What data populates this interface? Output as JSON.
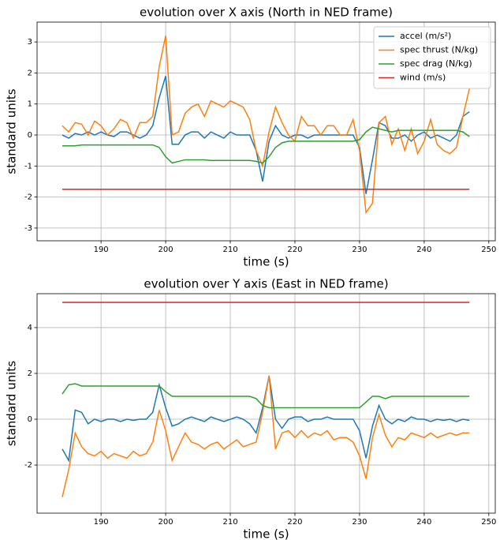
{
  "chart_data": [
    {
      "type": "line",
      "title": "evolution over X axis (North in NED frame)",
      "xlabel": "time (s)",
      "ylabel": "standard units",
      "xlim": [
        180.1,
        251
      ],
      "ylim": [
        -3.41,
        3.64
      ],
      "xticks": [
        190,
        200,
        210,
        220,
        230,
        240,
        250
      ],
      "yticks": [
        -3,
        -2,
        -1,
        0,
        1,
        2,
        3
      ],
      "grid": true,
      "legend": "upper right",
      "x": [
        184,
        185,
        186,
        187,
        188,
        189,
        190,
        191,
        192,
        193,
        194,
        195,
        196,
        197,
        198,
        199,
        200,
        201,
        202,
        203,
        204,
        205,
        206,
        207,
        208,
        209,
        210,
        211,
        212,
        213,
        214,
        215,
        216,
        217,
        218,
        219,
        220,
        221,
        222,
        223,
        224,
        225,
        226,
        227,
        228,
        229,
        230,
        231,
        232,
        233,
        234,
        235,
        236,
        237,
        238,
        239,
        240,
        241,
        242,
        243,
        244,
        245,
        246,
        247
      ],
      "series": [
        {
          "name": "accel (m/s²)",
          "color": "#1f77b4",
          "values": [
            0.0,
            -0.1,
            0.05,
            0.0,
            0.1,
            0.0,
            0.1,
            0.0,
            -0.05,
            0.1,
            0.1,
            0.0,
            -0.1,
            0.0,
            0.3,
            1.2,
            1.9,
            -0.3,
            -0.3,
            0.0,
            0.1,
            0.1,
            -0.1,
            0.1,
            0.0,
            -0.1,
            0.1,
            0.0,
            0.0,
            0.0,
            -0.5,
            -1.5,
            -0.2,
            0.3,
            0.0,
            -0.1,
            0.0,
            0.0,
            -0.1,
            0.0,
            0.0,
            0.0,
            0.0,
            0.0,
            0.0,
            0.0,
            -0.4,
            -1.9,
            -0.8,
            0.4,
            0.3,
            -0.1,
            -0.1,
            0.0,
            -0.2,
            0.0,
            0.1,
            -0.1,
            0.0,
            -0.1,
            -0.2,
            0.0,
            0.6,
            0.75
          ]
        },
        {
          "name": "spec thrust (N/kg)",
          "color": "#ff7f0e",
          "values": [
            0.3,
            0.1,
            0.4,
            0.35,
            0.0,
            0.45,
            0.3,
            0.0,
            0.2,
            0.5,
            0.4,
            -0.1,
            0.4,
            0.4,
            0.6,
            2.2,
            3.2,
            0.0,
            0.1,
            0.7,
            0.9,
            1.0,
            0.6,
            1.1,
            1.0,
            0.9,
            1.1,
            1.0,
            0.9,
            0.5,
            -0.5,
            -1.0,
            0.1,
            0.9,
            0.4,
            0.0,
            -0.2,
            0.6,
            0.3,
            0.3,
            0.0,
            0.3,
            0.3,
            0.0,
            0.0,
            0.5,
            -0.5,
            -2.5,
            -2.2,
            0.4,
            0.6,
            -0.3,
            0.2,
            -0.5,
            0.2,
            -0.6,
            -0.2,
            0.5,
            -0.3,
            -0.5,
            -0.6,
            -0.4,
            0.6,
            1.5
          ]
        },
        {
          "name": "spec drag (N/kg)",
          "color": "#2ca02c",
          "values": [
            -0.35,
            -0.35,
            -0.35,
            -0.32,
            -0.32,
            -0.32,
            -0.32,
            -0.32,
            -0.32,
            -0.32,
            -0.32,
            -0.32,
            -0.32,
            -0.32,
            -0.32,
            -0.4,
            -0.7,
            -0.9,
            -0.85,
            -0.8,
            -0.8,
            -0.8,
            -0.8,
            -0.82,
            -0.82,
            -0.82,
            -0.82,
            -0.82,
            -0.82,
            -0.82,
            -0.85,
            -0.9,
            -0.7,
            -0.4,
            -0.25,
            -0.2,
            -0.2,
            -0.2,
            -0.2,
            -0.2,
            -0.2,
            -0.2,
            -0.2,
            -0.2,
            -0.2,
            -0.2,
            -0.15,
            0.1,
            0.25,
            0.2,
            0.15,
            0.1,
            0.15,
            0.15,
            0.15,
            0.15,
            0.15,
            0.15,
            0.15,
            0.15,
            0.15,
            0.15,
            0.1,
            -0.05
          ]
        },
        {
          "name": "wind (m/s)",
          "color": "#d62728",
          "values": [
            -1.75,
            -1.75,
            -1.75,
            -1.75,
            -1.75,
            -1.75,
            -1.75,
            -1.75,
            -1.75,
            -1.75,
            -1.75,
            -1.75,
            -1.75,
            -1.75,
            -1.75,
            -1.75,
            -1.75,
            -1.75,
            -1.75,
            -1.75,
            -1.75,
            -1.75,
            -1.75,
            -1.75,
            -1.75,
            -1.75,
            -1.75,
            -1.75,
            -1.75,
            -1.75,
            -1.75,
            -1.75,
            -1.75,
            -1.75,
            -1.75,
            -1.75,
            -1.75,
            -1.75,
            -1.75,
            -1.75,
            -1.75,
            -1.75,
            -1.75,
            -1.75,
            -1.75,
            -1.75,
            -1.75,
            -1.75,
            -1.75,
            -1.75,
            -1.75,
            -1.75,
            -1.75,
            -1.75,
            -1.75,
            -1.75,
            -1.75,
            -1.75,
            -1.75,
            -1.75,
            -1.75,
            -1.75,
            -1.75,
            -1.75
          ]
        }
      ]
    },
    {
      "type": "line",
      "title": "evolution over Y axis (East in NED frame)",
      "xlabel": "time (s)",
      "ylabel": "standard units",
      "xlim": [
        180.1,
        251
      ],
      "ylim": [
        -4.1,
        5.48
      ],
      "xticks": [
        190,
        200,
        210,
        220,
        230,
        240,
        250
      ],
      "yticks": [
        -2,
        0,
        2,
        4
      ],
      "grid": true,
      "x": [
        184,
        185,
        186,
        187,
        188,
        189,
        190,
        191,
        192,
        193,
        194,
        195,
        196,
        197,
        198,
        199,
        200,
        201,
        202,
        203,
        204,
        205,
        206,
        207,
        208,
        209,
        210,
        211,
        212,
        213,
        214,
        215,
        216,
        217,
        218,
        219,
        220,
        221,
        222,
        223,
        224,
        225,
        226,
        227,
        228,
        229,
        230,
        231,
        232,
        233,
        234,
        235,
        236,
        237,
        238,
        239,
        240,
        241,
        242,
        243,
        244,
        245,
        246,
        247
      ],
      "series": [
        {
          "color": "#1f77b4",
          "values": [
            -1.3,
            -1.8,
            0.4,
            0.3,
            -0.2,
            0.0,
            -0.1,
            0.0,
            0.0,
            -0.1,
            0.0,
            -0.05,
            0.0,
            0.0,
            0.3,
            1.5,
            0.5,
            -0.3,
            -0.2,
            0.0,
            0.1,
            0.0,
            -0.1,
            0.1,
            0.0,
            -0.1,
            0.0,
            0.1,
            0.0,
            -0.2,
            -0.6,
            0.5,
            1.9,
            0.0,
            -0.4,
            0.0,
            0.1,
            0.1,
            -0.1,
            0.0,
            0.0,
            0.1,
            0.0,
            0.0,
            0.0,
            0.0,
            -0.5,
            -1.7,
            -0.3,
            0.6,
            0.0,
            -0.2,
            0.0,
            -0.1,
            0.1,
            0.0,
            0.0,
            -0.1,
            0.0,
            -0.05,
            0.0,
            -0.1,
            0.0,
            -0.05
          ]
        },
        {
          "color": "#ff7f0e",
          "values": [
            -3.4,
            -2.2,
            -0.6,
            -1.2,
            -1.5,
            -1.6,
            -1.4,
            -1.7,
            -1.5,
            -1.6,
            -1.7,
            -1.4,
            -1.6,
            -1.5,
            -1.0,
            0.4,
            -0.5,
            -1.8,
            -1.2,
            -0.6,
            -1.0,
            -1.1,
            -1.3,
            -1.1,
            -1.0,
            -1.3,
            -1.1,
            -0.9,
            -1.2,
            -1.1,
            -1.0,
            0.3,
            1.9,
            -1.3,
            -0.6,
            -0.5,
            -0.8,
            -0.5,
            -0.8,
            -0.6,
            -0.7,
            -0.5,
            -0.9,
            -0.8,
            -0.8,
            -1.0,
            -1.6,
            -2.6,
            -0.8,
            0.2,
            -0.7,
            -1.2,
            -0.8,
            -0.9,
            -0.6,
            -0.7,
            -0.8,
            -0.6,
            -0.8,
            -0.7,
            -0.6,
            -0.7,
            -0.6,
            -0.6
          ]
        },
        {
          "color": "#2ca02c",
          "values": [
            1.1,
            1.5,
            1.55,
            1.45,
            1.45,
            1.45,
            1.45,
            1.45,
            1.45,
            1.45,
            1.45,
            1.45,
            1.45,
            1.45,
            1.45,
            1.45,
            1.2,
            1.0,
            1.0,
            1.0,
            1.0,
            1.0,
            1.0,
            1.0,
            1.0,
            1.0,
            1.0,
            1.0,
            1.0,
            1.0,
            0.9,
            0.6,
            0.5,
            0.5,
            0.5,
            0.5,
            0.5,
            0.5,
            0.5,
            0.5,
            0.5,
            0.5,
            0.5,
            0.5,
            0.5,
            0.5,
            0.5,
            0.75,
            1.0,
            1.0,
            0.9,
            1.0,
            1.0,
            1.0,
            1.0,
            1.0,
            1.0,
            1.0,
            1.0,
            1.0,
            1.0,
            1.0,
            1.0,
            1.0
          ]
        },
        {
          "color": "#d62728",
          "values": [
            5.1,
            5.1,
            5.1,
            5.1,
            5.1,
            5.1,
            5.1,
            5.1,
            5.1,
            5.1,
            5.1,
            5.1,
            5.1,
            5.1,
            5.1,
            5.1,
            5.1,
            5.1,
            5.1,
            5.1,
            5.1,
            5.1,
            5.1,
            5.1,
            5.1,
            5.1,
            5.1,
            5.1,
            5.1,
            5.1,
            5.1,
            5.1,
            5.1,
            5.1,
            5.1,
            5.1,
            5.1,
            5.1,
            5.1,
            5.1,
            5.1,
            5.1,
            5.1,
            5.1,
            5.1,
            5.1,
            5.1,
            5.1,
            5.1,
            5.1,
            5.1,
            5.1,
            5.1,
            5.1,
            5.1,
            5.1,
            5.1,
            5.1,
            5.1,
            5.1,
            5.1,
            5.1,
            5.1,
            5.1
          ]
        }
      ]
    }
  ]
}
